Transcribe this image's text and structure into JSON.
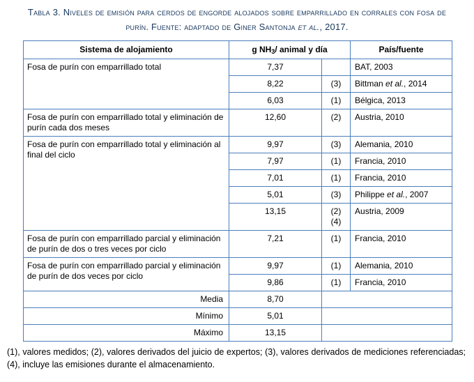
{
  "caption": {
    "pre": "Tabla 3. Niveles de emisión para cerdos de engorde alojados sobre emparrillado en corrales con fosa de purín. Fuente: adaptado de Giner Santonja ",
    "italic": "et al.",
    "post": ", 2017."
  },
  "table": {
    "headers": {
      "sistema": "Sistema de alojamiento",
      "emision": {
        "pre": "g NH",
        "sub": "3",
        "post": "/ animal y día"
      },
      "pais": "País/fuente"
    },
    "groups": [
      {
        "label": "Fosa de purín con emparrillado total",
        "rows": [
          {
            "value": "7,37",
            "note": "",
            "source": "BAT, 2003"
          },
          {
            "value": "8,22",
            "note": "(3)",
            "source": "Bittman et al., 2014"
          },
          {
            "value": "6,03",
            "note": "(1)",
            "source": "Bélgica, 2013"
          }
        ]
      },
      {
        "label": "Fosa de purín con emparrillado total y eliminación de purín cada dos meses",
        "rows": [
          {
            "value": "12,60",
            "note": "(2)",
            "source": "Austria, 2010"
          }
        ]
      },
      {
        "label": "Fosa de purín con emparrillado total y eliminación al final del ciclo",
        "rows": [
          {
            "value": "9,97",
            "note": "(3)",
            "source": "Alemania, 2010"
          },
          {
            "value": "7,97",
            "note": "(1)",
            "source": "Francia, 2010"
          },
          {
            "value": "7,01",
            "note": "(1)",
            "source": "Francia, 2010"
          },
          {
            "value": "5,01",
            "note": "(3)",
            "source": "Philippe et al., 2007"
          },
          {
            "value": "13,15",
            "note": "(2)\n(4)",
            "source": "Austria, 2009"
          }
        ]
      },
      {
        "label": "Fosa de purín con emparrillado parcial y eliminación de purín de dos o tres veces por ciclo",
        "rows": [
          {
            "value": "7,21",
            "note": "(1)",
            "source": "Francia, 2010"
          }
        ]
      },
      {
        "label": "Fosa de purín con emparrillado parcial y eliminación de purín de dos veces por ciclo",
        "rows": [
          {
            "value": "9,97",
            "note": "(1)",
            "source": "Alemania, 2010"
          },
          {
            "value": "9,86",
            "note": "(1)",
            "source": "Francia, 2010"
          }
        ]
      }
    ],
    "summary": [
      {
        "label": "Media",
        "value": "8,70"
      },
      {
        "label": "Mínimo",
        "value": "5,01"
      },
      {
        "label": "Máximo",
        "value": "13,15"
      }
    ]
  },
  "footnote": "(1), valores medidos; (2), valores derivados del juicio de expertos; (3), valores derivados de mediciones referenciadas; (4), incluye las emisiones durante el almacenamiento.",
  "colors": {
    "border_blue": "#4a7ebb",
    "caption_navy": "#17365d",
    "body_text": "#000000"
  }
}
